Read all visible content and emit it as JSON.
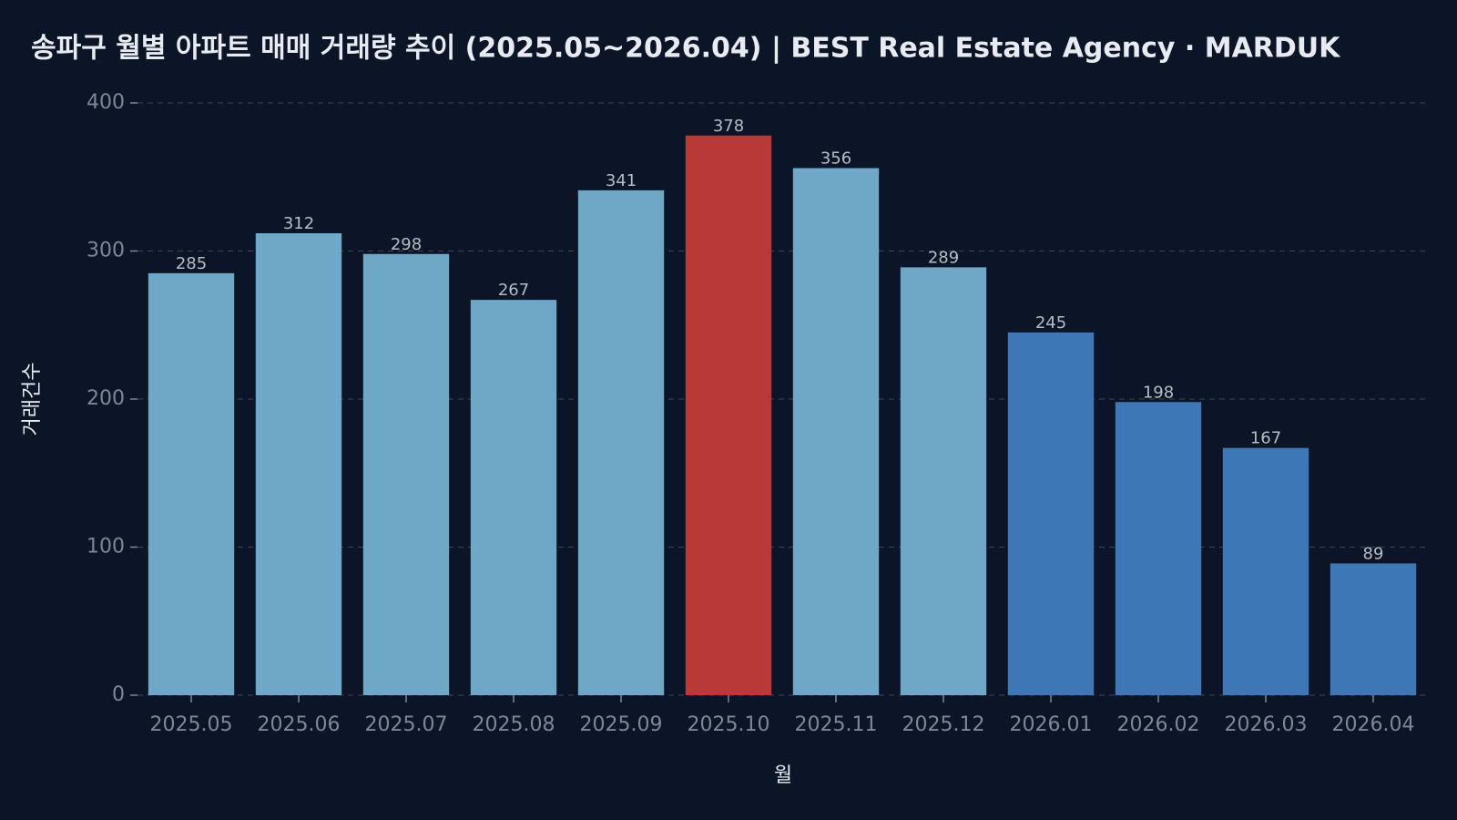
{
  "chart_data": {
    "type": "bar",
    "title": "송파구 월별 아파트 매매 거래량 추이 (2025.05~2026.04) | BEST Real Estate Agency · MARDUK",
    "x_label": "월",
    "y_label": "거래건수",
    "categories": [
      "2025.05",
      "2025.06",
      "2025.07",
      "2025.08",
      "2025.09",
      "2025.10",
      "2025.11",
      "2025.12",
      "2026.01",
      "2026.02",
      "2026.03",
      "2026.04"
    ],
    "values": [
      285,
      312,
      298,
      267,
      341,
      378,
      356,
      289,
      245,
      198,
      167,
      89
    ],
    "colors": [
      "#6fa8c6",
      "#6fa8c6",
      "#6fa8c6",
      "#6fa8c6",
      "#6fa8c6",
      "#b93838",
      "#6fa8c6",
      "#6fa8c6",
      "#3d77b6",
      "#3d77b6",
      "#3d77b6",
      "#3d77b6"
    ],
    "ylim": [
      0,
      400
    ],
    "yticks": [
      0,
      100,
      200,
      300,
      400
    ],
    "grid": true
  }
}
